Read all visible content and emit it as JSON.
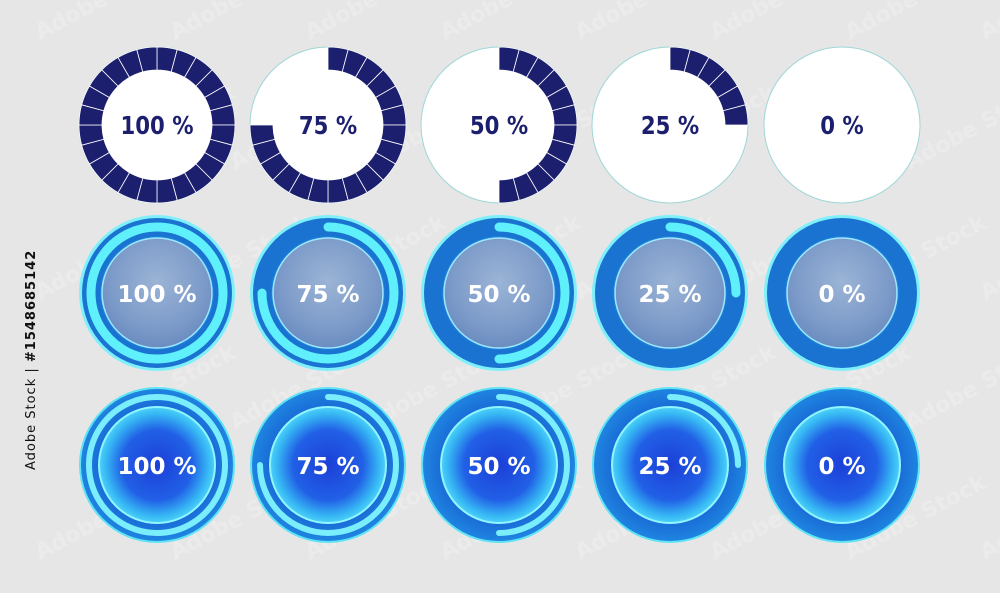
{
  "colors": {
    "background": "#e6e6e6",
    "navy": "#1c1f6e",
    "segment_line": "#ffffff",
    "cyan": "#3fe0f5",
    "mid_blue": "#1a73d0",
    "deep_blue": "#1546c8",
    "plate": "#e9f0f8"
  },
  "rows": [
    {
      "style": "segmented-navy",
      "items": [
        {
          "label": "100 %",
          "value": 1.0
        },
        {
          "label": "75 %",
          "value": 0.75
        },
        {
          "label": "50 %",
          "value": 0.5
        },
        {
          "label": "25 %",
          "value": 0.25
        },
        {
          "label": "0 %",
          "value": 0.0
        }
      ]
    },
    {
      "style": "glass-arc",
      "items": [
        {
          "label": "100 %",
          "value": 1.0
        },
        {
          "label": "75 %",
          "value": 0.75
        },
        {
          "label": "50 %",
          "value": 0.5
        },
        {
          "label": "25 %",
          "value": 0.25
        },
        {
          "label": "0 %",
          "value": 0.0
        }
      ]
    },
    {
      "style": "glow-arc",
      "items": [
        {
          "label": "100 %",
          "value": 1.0
        },
        {
          "label": "75 %",
          "value": 0.75
        },
        {
          "label": "50 %",
          "value": 0.5
        },
        {
          "label": "25 %",
          "value": 0.25
        },
        {
          "label": "0 %",
          "value": 0.0
        }
      ]
    }
  ],
  "watermark_text": "Adobe Stock",
  "stock_id": {
    "prefix": "Adobe Stock | ",
    "number": "#1548685142"
  }
}
